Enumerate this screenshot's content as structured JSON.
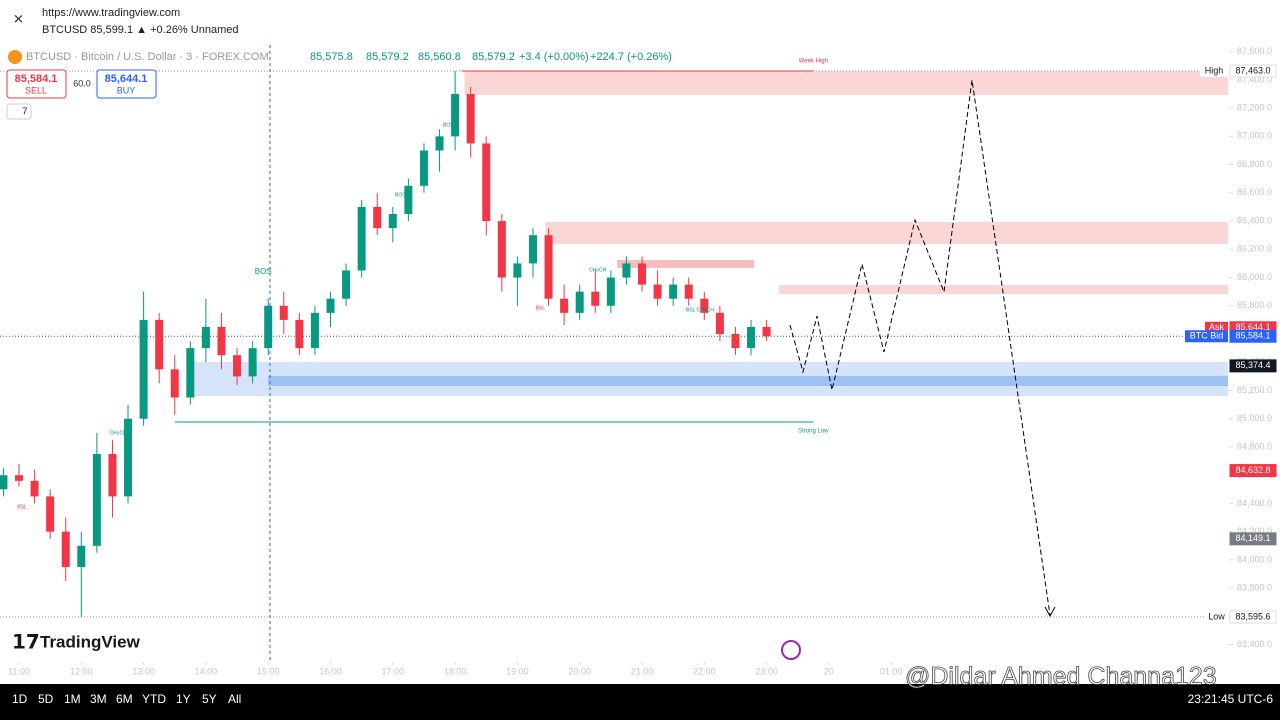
{
  "header": {
    "url": "https://www.tradingview.com",
    "tab": "BTCUSD 85,599.1 ▲ +0.26% Unnamed"
  },
  "symbol_bar": {
    "title": "BTCUSD · Bitcoin / U.S. Dollar · 3 · FOREX.COM",
    "open": "85,575.8",
    "high": "85,579.2",
    "low": "85,560.8",
    "close": "85,579.2",
    "change": "+3.4 (+0.00%)",
    "day_change": "+224.7 (+0.26%)"
  },
  "trade_panel": {
    "sell_price": "85,584.1",
    "sell": "SELL",
    "spread": "60.0",
    "buy_price": "85,644.1",
    "buy": "BUY",
    "collapsed": "7"
  },
  "chart": {
    "type": "candlestick",
    "yticks": [
      {
        "value": 83400,
        "label": "83,400.0"
      },
      {
        "value": 83600,
        "label": "83,600.0"
      },
      {
        "value": 83800,
        "label": "83,800.0"
      },
      {
        "value": 84000,
        "label": "84,000.0"
      },
      {
        "value": 84200,
        "label": "84,200.0"
      },
      {
        "value": 84400,
        "label": "84,400.0"
      },
      {
        "value": 84600,
        "label": "84,600.0"
      },
      {
        "value": 84800,
        "label": "84,800.0"
      },
      {
        "value": 85000,
        "label": "85,000.0"
      },
      {
        "value": 85200,
        "label": "85,200.0"
      },
      {
        "value": 85400,
        "label": "85,400.0"
      },
      {
        "value": 85600,
        "label": "85,600.0"
      },
      {
        "value": 85800,
        "label": "85,800.0"
      },
      {
        "value": 86000,
        "label": "86,000.0"
      },
      {
        "value": 86200,
        "label": "86,200.0"
      },
      {
        "value": 86400,
        "label": "86,400.0"
      },
      {
        "value": 86600,
        "label": "86,600.0"
      },
      {
        "value": 86800,
        "label": "86,800.0"
      },
      {
        "value": 87000,
        "label": "87,000.0"
      },
      {
        "value": 87200,
        "label": "87,200.0"
      },
      {
        "value": 87400,
        "label": "87,400.0"
      },
      {
        "value": 87600,
        "label": "87,600.0"
      }
    ],
    "xticks": [
      {
        "value": 11,
        "label": "11:00"
      },
      {
        "value": 12,
        "label": "12:00"
      },
      {
        "value": 13,
        "label": "13:00"
      },
      {
        "value": 14,
        "label": "14:00"
      },
      {
        "value": 15,
        "label": "15:00"
      },
      {
        "value": 16,
        "label": "16:00"
      },
      {
        "value": 17,
        "label": "17:00"
      },
      {
        "value": 18,
        "label": "18:00"
      },
      {
        "value": 19,
        "label": "19:00"
      },
      {
        "value": 20,
        "label": "20:00"
      },
      {
        "value": 21,
        "label": "21:00"
      },
      {
        "value": 22,
        "label": "22:00"
      },
      {
        "value": 23,
        "label": "23:00"
      },
      {
        "value": 24,
        "label": "20"
      },
      {
        "value": 25,
        "label": "01:00"
      }
    ],
    "up_color": "#089981",
    "down_color": "#f23645",
    "candles": [
      [
        10.75,
        84500,
        84650,
        84450,
        84600
      ],
      [
        11.0,
        84600,
        84680,
        84520,
        84560
      ],
      [
        11.25,
        84560,
        84640,
        84400,
        84450
      ],
      [
        11.5,
        84450,
        84500,
        84150,
        84200
      ],
      [
        11.75,
        84200,
        84300,
        83850,
        83950
      ],
      [
        12.0,
        83950,
        84200,
        83595.6,
        84100
      ],
      [
        12.25,
        84100,
        84900,
        84050,
        84750
      ],
      [
        12.5,
        84750,
        84850,
        84300,
        84450
      ],
      [
        12.75,
        84450,
        85100,
        84400,
        85000
      ],
      [
        13.0,
        85000,
        85900,
        84950,
        85700
      ],
      [
        13.25,
        85700,
        85750,
        85250,
        85350
      ],
      [
        13.5,
        85350,
        85450,
        85027,
        85150
      ],
      [
        13.75,
        85150,
        85550,
        85100,
        85500
      ],
      [
        14.0,
        85500,
        85850,
        85400,
        85650
      ],
      [
        14.25,
        85650,
        85750,
        85350,
        85450
      ],
      [
        14.5,
        85450,
        85500,
        85239,
        85300
      ],
      [
        14.75,
        85300,
        85550,
        85250,
        85500
      ],
      [
        15.0,
        85500,
        85850,
        85450,
        85800
      ],
      [
        15.25,
        85800,
        85900,
        85600,
        85700
      ],
      [
        15.5,
        85700,
        85750,
        85450,
        85500
      ],
      [
        15.75,
        85500,
        85800,
        85450,
        85750
      ],
      [
        16.0,
        85750,
        85900,
        85650,
        85850
      ],
      [
        16.25,
        85850,
        86100,
        85800,
        86050
      ],
      [
        16.5,
        86050,
        86550,
        86000,
        86500
      ],
      [
        16.75,
        86500,
        86600,
        86300,
        86350
      ],
      [
        17.0,
        86350,
        86500,
        86250,
        86450
      ],
      [
        17.25,
        86450,
        86700,
        86400,
        86650
      ],
      [
        17.5,
        86650,
        86950,
        86600,
        86900
      ],
      [
        17.75,
        86900,
        87050,
        86750,
        87000
      ],
      [
        18.0,
        87000,
        87463,
        86900,
        87300
      ],
      [
        18.25,
        87300,
        87350,
        86850,
        86950
      ],
      [
        18.5,
        86950,
        87000,
        86300,
        86400
      ],
      [
        18.75,
        86400,
        86450,
        85900,
        86000
      ],
      [
        19.0,
        86000,
        86150,
        85800,
        86100
      ],
      [
        19.25,
        86100,
        86350,
        86000,
        86300
      ],
      [
        19.5,
        86300,
        86350,
        85800,
        85850
      ],
      [
        19.75,
        85850,
        85950,
        85664,
        85750
      ],
      [
        20.0,
        85750,
        85950,
        85700,
        85900
      ],
      [
        20.25,
        85900,
        86050,
        85750,
        85800
      ],
      [
        20.5,
        85800,
        86050,
        85750,
        86000
      ],
      [
        20.75,
        86000,
        86150,
        85950,
        86100
      ],
      [
        21.0,
        86100,
        86150,
        85900,
        85950
      ],
      [
        21.25,
        85950,
        86050,
        85800,
        85850
      ],
      [
        21.5,
        85850,
        86000,
        85800,
        85950
      ],
      [
        21.75,
        85950,
        86000,
        85800,
        85850
      ],
      [
        22.0,
        85850,
        85900,
        85700,
        85750
      ],
      [
        22.25,
        85750,
        85800,
        85550,
        85600
      ],
      [
        22.5,
        85600,
        85650,
        85452,
        85500
      ],
      [
        22.75,
        85500,
        85700,
        85450,
        85650
      ],
      [
        23.0,
        85650,
        85700,
        85550,
        85584.1
      ]
    ],
    "zones": [
      {
        "top": 87463,
        "bottom": 87293,
        "start": 18.15,
        "color": "#fad6d6"
      },
      {
        "top": 86393,
        "bottom": 86238,
        "start": 19.45,
        "color": "#fad6d6"
      },
      {
        "top": 86124,
        "bottom": 86068,
        "start": 20.6,
        "end": 22.8,
        "color": "#f7bcbc"
      },
      {
        "top": 85947,
        "bottom": 85883,
        "start": 23.2,
        "color": "#fad6d6"
      },
      {
        "top": 85402,
        "bottom": 85161,
        "start": 13.8,
        "color": "#d5e3fb"
      },
      {
        "top": 85303,
        "bottom": 85232,
        "start": 15.0,
        "color": "#9cc1f2"
      }
    ],
    "levels": [
      {
        "label": "Strong Low",
        "price": 84977,
        "start": 13.5,
        "end": 23.75,
        "color": "#089981"
      },
      {
        "label": "Week High",
        "price": 87463,
        "start": 18.1,
        "end": 23.75,
        "color": "#f23645"
      }
    ],
    "annotations": [
      {
        "text": "BOS",
        "t": 14.92,
        "price": 86039
      },
      {
        "text": "CHoCH",
        "t": 12.59,
        "price": 84899
      },
      {
        "text": "BOS",
        "t": 17.12,
        "price": 86585
      },
      {
        "text": "BOS",
        "t": 17.89,
        "price": 87081
      },
      {
        "text": "CHoCH",
        "t": 20.29,
        "price": 86054
      },
      {
        "text": "BSL",
        "t": 19.37,
        "price": 85784
      },
      {
        "text": "BSL CHoCH",
        "t": 21.93,
        "price": 85770
      },
      {
        "text": "BSL",
        "t": 11.05,
        "price": 84375
      }
    ],
    "price_labels": [
      {
        "tag": "High",
        "value": 87463.0,
        "label": "87,463.0",
        "bg": "#ffffff",
        "fg": "#131722"
      },
      {
        "tag": "Ask",
        "value": 85644.1,
        "label": "85,644.1",
        "bg": "#f23645",
        "fg": "#ffffff"
      },
      {
        "tag": "BTC Bid",
        "value": 85584.1,
        "label": "85,584.1",
        "bg": "#2962ff",
        "fg": "#ffffff"
      },
      {
        "value": 85374.4,
        "label": "85,374.4",
        "bg": "#131722",
        "fg": "#ffffff"
      },
      {
        "value": 84632.8,
        "label": "84,632.8",
        "bg": "#f23645",
        "fg": "#ffffff"
      },
      {
        "value": 84149.1,
        "label": "84,149.1",
        "bg": "#787b86",
        "fg": "#ffffff"
      },
      {
        "tag": "Low",
        "value": 83595.6,
        "label": "83,595.6",
        "bg": "#ffffff",
        "fg": "#131722"
      }
    ],
    "logo": "TradingView"
  },
  "footer": {
    "timeframes": [
      "1D",
      "5D",
      "1M",
      "3M",
      "6M",
      "YTD",
      "1Y",
      "5Y",
      "All"
    ],
    "clock": "23:21:45 UTC-6"
  },
  "watermark": "@Dildar Ahmed Channa123"
}
